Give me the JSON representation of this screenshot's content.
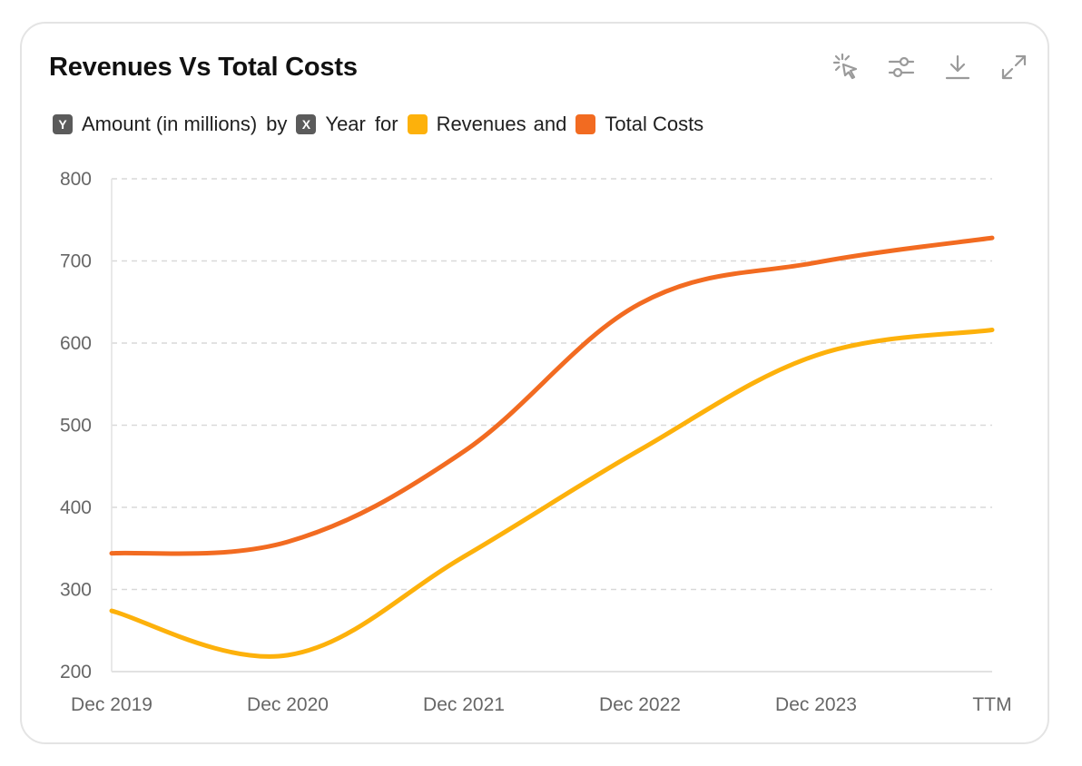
{
  "header": {
    "title": "Revenues Vs Total Costs",
    "toolbar": [
      {
        "icon": "select-pointer-icon"
      },
      {
        "icon": "sliders-icon"
      },
      {
        "icon": "download-icon"
      },
      {
        "icon": "expand-icon"
      }
    ]
  },
  "subtitle": {
    "y_badge": "Y",
    "y_text": "Amount (in millions)",
    "by": "by",
    "x_badge": "X",
    "x_text": "Year",
    "for": "for",
    "series1": "Revenues",
    "and": "and",
    "series2": "Total Costs"
  },
  "colors": {
    "revenues": "#FDB10B",
    "total_costs": "#F26B21",
    "grid": "#d9d9d9",
    "axis_text": "#666666"
  },
  "chart_data": {
    "type": "line",
    "title": "Revenues Vs Total Costs",
    "ylabel": "Amount (in millions)",
    "xlabel": "Year",
    "categories": [
      "Dec 2019",
      "Dec 2020",
      "Dec 2021",
      "Dec 2022",
      "Dec 2023",
      "TTM"
    ],
    "ylim": [
      200,
      800
    ],
    "yticks": [
      200,
      300,
      400,
      500,
      600,
      700,
      800
    ],
    "grid": true,
    "series": [
      {
        "name": "Revenues",
        "color": "#FDB10B",
        "values": [
          274,
          220,
          340,
          470,
          585,
          616
        ]
      },
      {
        "name": "Total Costs",
        "color": "#F26B21",
        "values": [
          344,
          358,
          468,
          648,
          698,
          728
        ]
      }
    ]
  }
}
